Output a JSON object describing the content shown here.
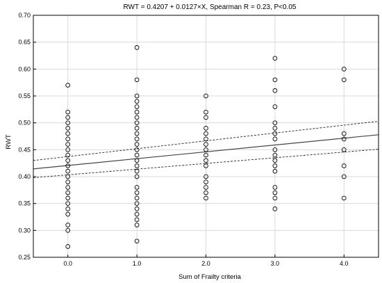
{
  "chart_data": {
    "type": "scatter",
    "title": "RWT = 0.4207 + 0.0127×X, Spearman R = 0.23, P<0.05",
    "xlabel": "Sum of Frailty criteria",
    "ylabel": "RWT",
    "xlim": [
      -0.5,
      4.5
    ],
    "ylim": [
      0.25,
      0.7
    ],
    "xticks": [
      0,
      1,
      2,
      3,
      4
    ],
    "xtick_labels": [
      "0.0",
      "1.0",
      "2.0",
      "3.0",
      "4.0"
    ],
    "yticks": [
      0.25,
      0.3,
      0.35,
      0.4,
      0.45,
      0.5,
      0.55,
      0.6,
      0.65,
      0.7
    ],
    "ytick_labels": [
      "0.25",
      "0.30",
      "0.35",
      "0.40",
      "0.45",
      "0.50",
      "0.55",
      "0.60",
      "0.65",
      "0.70"
    ],
    "grid": true,
    "regression": {
      "intercept": 0.4207,
      "slope": 0.0127
    },
    "confidence_band": {
      "upper": [
        [
          -0.5,
          0.43
        ],
        [
          4.5,
          0.503
        ]
      ],
      "lower": [
        [
          -0.5,
          0.398
        ],
        [
          4.5,
          0.451
        ]
      ]
    },
    "points": [
      [
        0,
        0.57
      ],
      [
        0,
        0.52
      ],
      [
        0,
        0.51
      ],
      [
        0,
        0.5
      ],
      [
        0,
        0.49
      ],
      [
        0,
        0.48
      ],
      [
        0,
        0.47
      ],
      [
        0,
        0.46
      ],
      [
        0,
        0.45
      ],
      [
        0,
        0.44
      ],
      [
        0,
        0.43
      ],
      [
        0,
        0.42
      ],
      [
        0,
        0.41
      ],
      [
        0,
        0.4
      ],
      [
        0,
        0.39
      ],
      [
        0,
        0.38
      ],
      [
        0,
        0.37
      ],
      [
        0,
        0.36
      ],
      [
        0,
        0.35
      ],
      [
        0,
        0.34
      ],
      [
        0,
        0.33
      ],
      [
        0,
        0.31
      ],
      [
        0,
        0.3
      ],
      [
        0,
        0.27
      ],
      [
        1,
        0.64
      ],
      [
        1,
        0.58
      ],
      [
        1,
        0.55
      ],
      [
        1,
        0.54
      ],
      [
        1,
        0.53
      ],
      [
        1,
        0.52
      ],
      [
        1,
        0.51
      ],
      [
        1,
        0.5
      ],
      [
        1,
        0.49
      ],
      [
        1,
        0.48
      ],
      [
        1,
        0.47
      ],
      [
        1,
        0.46
      ],
      [
        1,
        0.45
      ],
      [
        1,
        0.44
      ],
      [
        1,
        0.43
      ],
      [
        1,
        0.42
      ],
      [
        1,
        0.41
      ],
      [
        1,
        0.4
      ],
      [
        1,
        0.38
      ],
      [
        1,
        0.37
      ],
      [
        1,
        0.36
      ],
      [
        1,
        0.35
      ],
      [
        1,
        0.34
      ],
      [
        1,
        0.33
      ],
      [
        1,
        0.32
      ],
      [
        1,
        0.31
      ],
      [
        1,
        0.28
      ],
      [
        2,
        0.55
      ],
      [
        2,
        0.52
      ],
      [
        2,
        0.51
      ],
      [
        2,
        0.49
      ],
      [
        2,
        0.48
      ],
      [
        2,
        0.47
      ],
      [
        2,
        0.46
      ],
      [
        2,
        0.45
      ],
      [
        2,
        0.44
      ],
      [
        2,
        0.43
      ],
      [
        2,
        0.42
      ],
      [
        2,
        0.4
      ],
      [
        2,
        0.39
      ],
      [
        2,
        0.38
      ],
      [
        2,
        0.37
      ],
      [
        2,
        0.36
      ],
      [
        3,
        0.62
      ],
      [
        3,
        0.58
      ],
      [
        3,
        0.56
      ],
      [
        3,
        0.53
      ],
      [
        3,
        0.5
      ],
      [
        3,
        0.49
      ],
      [
        3,
        0.48
      ],
      [
        3,
        0.47
      ],
      [
        3,
        0.45
      ],
      [
        3,
        0.44
      ],
      [
        3,
        0.43
      ],
      [
        3,
        0.42
      ],
      [
        3,
        0.41
      ],
      [
        3,
        0.38
      ],
      [
        3,
        0.37
      ],
      [
        3,
        0.36
      ],
      [
        3,
        0.34
      ],
      [
        4,
        0.6
      ],
      [
        4,
        0.58
      ],
      [
        4,
        0.48
      ],
      [
        4,
        0.47
      ],
      [
        4,
        0.45
      ],
      [
        4,
        0.42
      ],
      [
        4,
        0.4
      ],
      [
        4,
        0.36
      ]
    ],
    "colors": {
      "points": "#000000",
      "grid": "#d9d9d9",
      "line": "#444444"
    }
  }
}
